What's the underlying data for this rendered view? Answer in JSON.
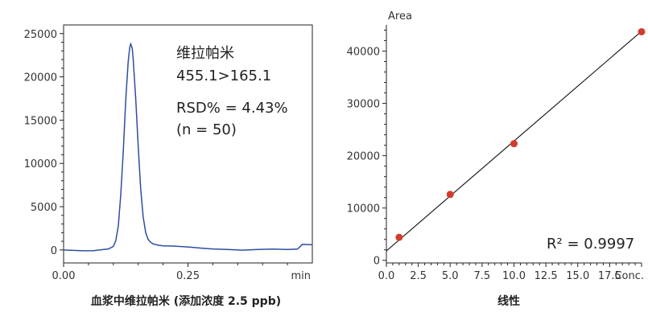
{
  "chart_data": [
    {
      "type": "line",
      "x_ticks": [
        "0.00",
        "0.25"
      ],
      "x_unit": "min",
      "y_ticks": [
        "0",
        "5000",
        "10000",
        "15000",
        "20000",
        "25000"
      ],
      "xlim": [
        0.0,
        0.5
      ],
      "ylim": [
        -1500,
        26000
      ],
      "x": [
        0.0,
        0.02,
        0.04,
        0.06,
        0.08,
        0.09,
        0.1,
        0.105,
        0.11,
        0.115,
        0.12,
        0.125,
        0.13,
        0.133,
        0.135,
        0.138,
        0.14,
        0.145,
        0.15,
        0.155,
        0.16,
        0.165,
        0.17,
        0.175,
        0.18,
        0.19,
        0.2,
        0.22,
        0.25,
        0.28,
        0.3,
        0.33,
        0.36,
        0.39,
        0.42,
        0.45,
        0.47,
        0.48,
        0.5
      ],
      "y": [
        0,
        -50,
        -100,
        -80,
        50,
        120,
        400,
        1100,
        2800,
        6500,
        11500,
        17500,
        21800,
        23400,
        23800,
        23300,
        22000,
        17500,
        12000,
        7000,
        3800,
        2000,
        1200,
        900,
        700,
        550,
        480,
        450,
        350,
        200,
        120,
        50,
        -20,
        50,
        100,
        50,
        100,
        650,
        600
      ],
      "annotation": [
        "维拉帕米",
        "455.1>165.1",
        "RSD% = 4.43%",
        "(n = 50)"
      ],
      "caption": "血浆中维拉帕米 (添加浓度 2.5 ppb)",
      "line_color": "#2b4fa0"
    },
    {
      "type": "scatter",
      "ylabel": "Area",
      "xlabel": "Conc.",
      "x_ticks": [
        "0.0",
        "2.5",
        "5.0",
        "7.5",
        "10.0",
        "12.5",
        "15.0",
        "17.5",
        "Conc."
      ],
      "y_ticks": [
        "0",
        "10000",
        "20000",
        "30000",
        "40000"
      ],
      "xlim": [
        0,
        20
      ],
      "ylim": [
        -500,
        45000
      ],
      "points": [
        {
          "x": 1,
          "y": 4400
        },
        {
          "x": 5,
          "y": 12600
        },
        {
          "x": 10,
          "y": 22300
        },
        {
          "x": 20,
          "y": 43700
        }
      ],
      "fit_line": {
        "x": [
          0,
          20
        ],
        "y": [
          1800,
          43800
        ]
      },
      "r2_label": "R² = 0.9997",
      "caption": "线性",
      "point_color": "#d23c2c",
      "line_color": "#222222"
    }
  ]
}
